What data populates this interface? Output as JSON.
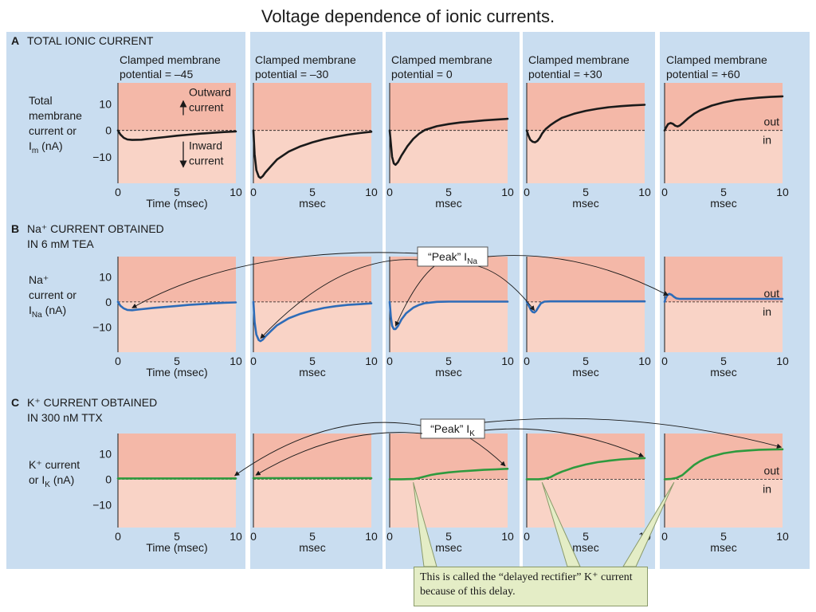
{
  "title": "Voltage dependence of ionic currents.",
  "columns": [
    {
      "potential_line1": "Clamped membrane",
      "potential_line2": "potential = –45",
      "time_label": "Time (msec)"
    },
    {
      "potential_line1": "Clamped membrane",
      "potential_line2": "potential = –30",
      "time_label": "msec"
    },
    {
      "potential_line1": "Clamped membrane",
      "potential_line2": "potential = 0",
      "time_label": "msec"
    },
    {
      "potential_line1": "Clamped membrane",
      "potential_line2": "potential = +30",
      "time_label": "msec"
    },
    {
      "potential_line1": "Clamped membrane",
      "potential_line2": "potential = +60",
      "time_label": "msec"
    }
  ],
  "colors": {
    "panel_bg": "#c9ddf0",
    "plot_bg_out": "#f4b8a8",
    "plot_bg_in": "#f9d3c6",
    "total_trace": "#1a1a1a",
    "na_trace": "#2e6cb8",
    "k_trace": "#2e9a3e",
    "callout_bg": "#e4edc6"
  },
  "chart_data": [
    {
      "type": "line",
      "row_letter": "A",
      "title_lines": [
        "TOTAL IONIC CURRENT"
      ],
      "ylabel_lines": [
        "Total",
        "membrane",
        "current or",
        "I_m (nA)"
      ],
      "ylim": [
        -20,
        18
      ],
      "yticks": [
        10,
        0,
        -10
      ],
      "xlim": [
        0,
        10
      ],
      "xticks": [
        0,
        5,
        10
      ],
      "annotations": {
        "outward": [
          "Outward",
          "current"
        ],
        "inward": [
          "Inward",
          "current"
        ],
        "out": "out",
        "in": "in"
      },
      "series": [
        {
          "name": "Clamped membrane potential = –45",
          "x": [
            0,
            0.2,
            0.5,
            0.8,
            1.2,
            2,
            3,
            4,
            5,
            6,
            7,
            8,
            9,
            10
          ],
          "y": [
            0,
            -1.5,
            -2.8,
            -3.4,
            -3.6,
            -3.5,
            -3,
            -2.5,
            -2,
            -1.6,
            -1.2,
            -0.9,
            -0.6,
            -0.4
          ]
        },
        {
          "name": "Clamped membrane potential = –30",
          "x": [
            0,
            0.1,
            0.25,
            0.45,
            0.6,
            0.8,
            1,
            1.5,
            2,
            3,
            4,
            5,
            6,
            7,
            8,
            9,
            10
          ],
          "y": [
            0,
            -9,
            -15,
            -17.5,
            -18,
            -17.3,
            -16,
            -13.5,
            -11,
            -8,
            -6,
            -4.5,
            -3.3,
            -2.4,
            -1.6,
            -1,
            -0.5
          ]
        },
        {
          "name": "Clamped membrane potential = 0",
          "x": [
            0,
            0.1,
            0.2,
            0.35,
            0.5,
            0.7,
            1,
            1.5,
            2,
            2.5,
            3,
            4,
            5,
            6,
            7,
            8,
            9,
            10
          ],
          "y": [
            0,
            -5,
            -10,
            -12.5,
            -13,
            -12,
            -9.5,
            -6,
            -3.2,
            -1.2,
            0.2,
            1.6,
            2.4,
            3,
            3.4,
            3.8,
            4.1,
            4.4
          ]
        },
        {
          "name": "Clamped membrane potential = +30",
          "x": [
            0,
            0.15,
            0.3,
            0.5,
            0.7,
            0.9,
            1.1,
            1.3,
            1.6,
            2,
            2.5,
            3,
            4,
            5,
            6,
            7,
            8,
            9,
            10
          ],
          "y": [
            0,
            -2,
            -3.5,
            -4.3,
            -4.5,
            -4,
            -2.8,
            -1.2,
            0.5,
            2,
            3.5,
            4.8,
            6.3,
            7.4,
            8.2,
            8.8,
            9.2,
            9.5,
            9.7
          ]
        },
        {
          "name": "Clamped membrane potential = +60",
          "x": [
            0,
            0.15,
            0.3,
            0.5,
            0.7,
            0.9,
            1.1,
            1.3,
            1.6,
            2,
            2.5,
            3,
            4,
            5,
            6,
            7,
            8,
            9,
            10
          ],
          "y": [
            0,
            1.3,
            2.4,
            2.8,
            2.5,
            1.8,
            1.5,
            1.9,
            3,
            4.6,
            6.3,
            7.6,
            9.4,
            10.6,
            11.5,
            12,
            12.4,
            12.7,
            12.9
          ]
        }
      ]
    },
    {
      "type": "line",
      "row_letter": "B",
      "title_lines": [
        "Na⁺ CURRENT OBTAINED",
        "IN 6 mM TEA"
      ],
      "ylabel_lines": [
        "Na⁺",
        "current or",
        "I_Na (nA)"
      ],
      "ylim": [
        -20,
        18
      ],
      "yticks": [
        10,
        0,
        -10
      ],
      "xlim": [
        0,
        10
      ],
      "xticks": [
        0,
        5,
        10
      ],
      "annotations": {
        "peak": "“Peak” I_Na",
        "out": "out",
        "in": "in"
      },
      "series": [
        {
          "name": "Clamped membrane potential = –45",
          "x": [
            0,
            0.2,
            0.5,
            0.8,
            1.2,
            1.6,
            2,
            3,
            4,
            5,
            6,
            7,
            8,
            9,
            10
          ],
          "y": [
            0,
            -1.5,
            -2.6,
            -3.2,
            -3.3,
            -3.1,
            -2.9,
            -2.4,
            -2,
            -1.6,
            -1.2,
            -0.9,
            -0.6,
            -0.35,
            -0.2
          ]
        },
        {
          "name": "Clamped membrane potential = –30",
          "x": [
            0,
            0.1,
            0.25,
            0.45,
            0.6,
            0.8,
            1,
            1.5,
            2,
            3,
            4,
            5,
            6,
            7,
            8,
            9,
            10
          ],
          "y": [
            0,
            -8,
            -13,
            -15.2,
            -15.6,
            -15,
            -13.8,
            -11.5,
            -9.3,
            -6.5,
            -4.7,
            -3.4,
            -2.4,
            -1.7,
            -1.2,
            -0.9,
            -0.6
          ]
        },
        {
          "name": "Clamped membrane potential = 0",
          "x": [
            0,
            0.1,
            0.2,
            0.35,
            0.5,
            0.7,
            1,
            1.4,
            2,
            2.5,
            3,
            4,
            5,
            6,
            7,
            8,
            9,
            10
          ],
          "y": [
            0,
            -6,
            -9.5,
            -10.8,
            -10.8,
            -9.6,
            -7,
            -4.5,
            -2.3,
            -1.2,
            -0.5,
            0,
            0.1,
            0.1,
            0.1,
            0.1,
            0.1,
            0.1
          ]
        },
        {
          "name": "Clamped membrane potential = +30",
          "x": [
            0,
            0.2,
            0.35,
            0.5,
            0.65,
            0.8,
            1,
            1.2,
            1.5,
            2,
            3,
            4,
            5,
            6,
            7,
            8,
            9,
            10
          ],
          "y": [
            0,
            -1.8,
            -3.2,
            -4,
            -4.2,
            -3.6,
            -2,
            -0.6,
            0.1,
            0.2,
            0.2,
            0.2,
            0.2,
            0.2,
            0.2,
            0.2,
            0.2,
            0.2
          ]
        },
        {
          "name": "Clamped membrane potential = +60",
          "x": [
            0,
            0.1,
            0.25,
            0.4,
            0.6,
            0.8,
            1,
            1.3,
            1.6,
            2,
            3,
            4,
            5,
            6,
            7,
            8,
            9,
            10
          ],
          "y": [
            0,
            1.6,
            2.8,
            3.2,
            2.8,
            2,
            1.4,
            1.2,
            1.2,
            1.2,
            1.2,
            1.2,
            1.2,
            1.2,
            1.2,
            1.2,
            1.2,
            1.2
          ]
        }
      ]
    },
    {
      "type": "line",
      "row_letter": "C",
      "title_lines": [
        "K⁺ CURRENT OBTAINED",
        "IN 300 nM TTX"
      ],
      "ylabel_lines": [
        "K⁺ current",
        "or I_K (nA)"
      ],
      "ylim": [
        -19,
        18
      ],
      "yticks": [
        10,
        0,
        -10
      ],
      "xlim": [
        0,
        10
      ],
      "xticks": [
        0,
        5,
        10
      ],
      "annotations": {
        "peak": "“Peak” I_K",
        "out": "out",
        "in": "in",
        "delay_note": "This is called the “delayed rectifier” K⁺ current because of this delay."
      },
      "series": [
        {
          "name": "Clamped membrane potential = –45",
          "x": [
            0,
            2,
            4,
            6,
            8,
            10
          ],
          "y": [
            0.3,
            0.3,
            0.3,
            0.3,
            0.3,
            0.3
          ]
        },
        {
          "name": "Clamped membrane potential = –30",
          "x": [
            0,
            2,
            4,
            6,
            8,
            10
          ],
          "y": [
            0.4,
            0.4,
            0.4,
            0.4,
            0.4,
            0.4
          ]
        },
        {
          "name": "Clamped membrane potential = 0",
          "x": [
            0,
            1,
            2,
            2.5,
            3,
            3.5,
            4,
            5,
            6,
            7,
            8,
            9,
            10
          ],
          "y": [
            0,
            0,
            0.1,
            0.5,
            1.1,
            1.7,
            2.1,
            2.7,
            3.1,
            3.4,
            3.7,
            3.9,
            4.1
          ]
        },
        {
          "name": "Clamped membrane potential = +30",
          "x": [
            0,
            1,
            1.5,
            2,
            2.5,
            3,
            3.5,
            4,
            5,
            6,
            7,
            8,
            9,
            10
          ],
          "y": [
            0,
            0,
            0.2,
            0.8,
            2,
            3,
            3.8,
            4.6,
            5.8,
            6.7,
            7.3,
            7.8,
            8.1,
            8.3
          ]
        },
        {
          "name": "Clamped membrane potential = +60",
          "x": [
            0,
            0.5,
            1,
            1.5,
            2,
            2.5,
            3,
            3.5,
            4,
            5,
            6,
            7,
            8,
            9,
            10
          ],
          "y": [
            0,
            0.1,
            0.5,
            1.6,
            3.6,
            5.6,
            7.1,
            8.2,
            9,
            10.2,
            10.9,
            11.3,
            11.6,
            11.7,
            11.8
          ]
        }
      ]
    }
  ]
}
